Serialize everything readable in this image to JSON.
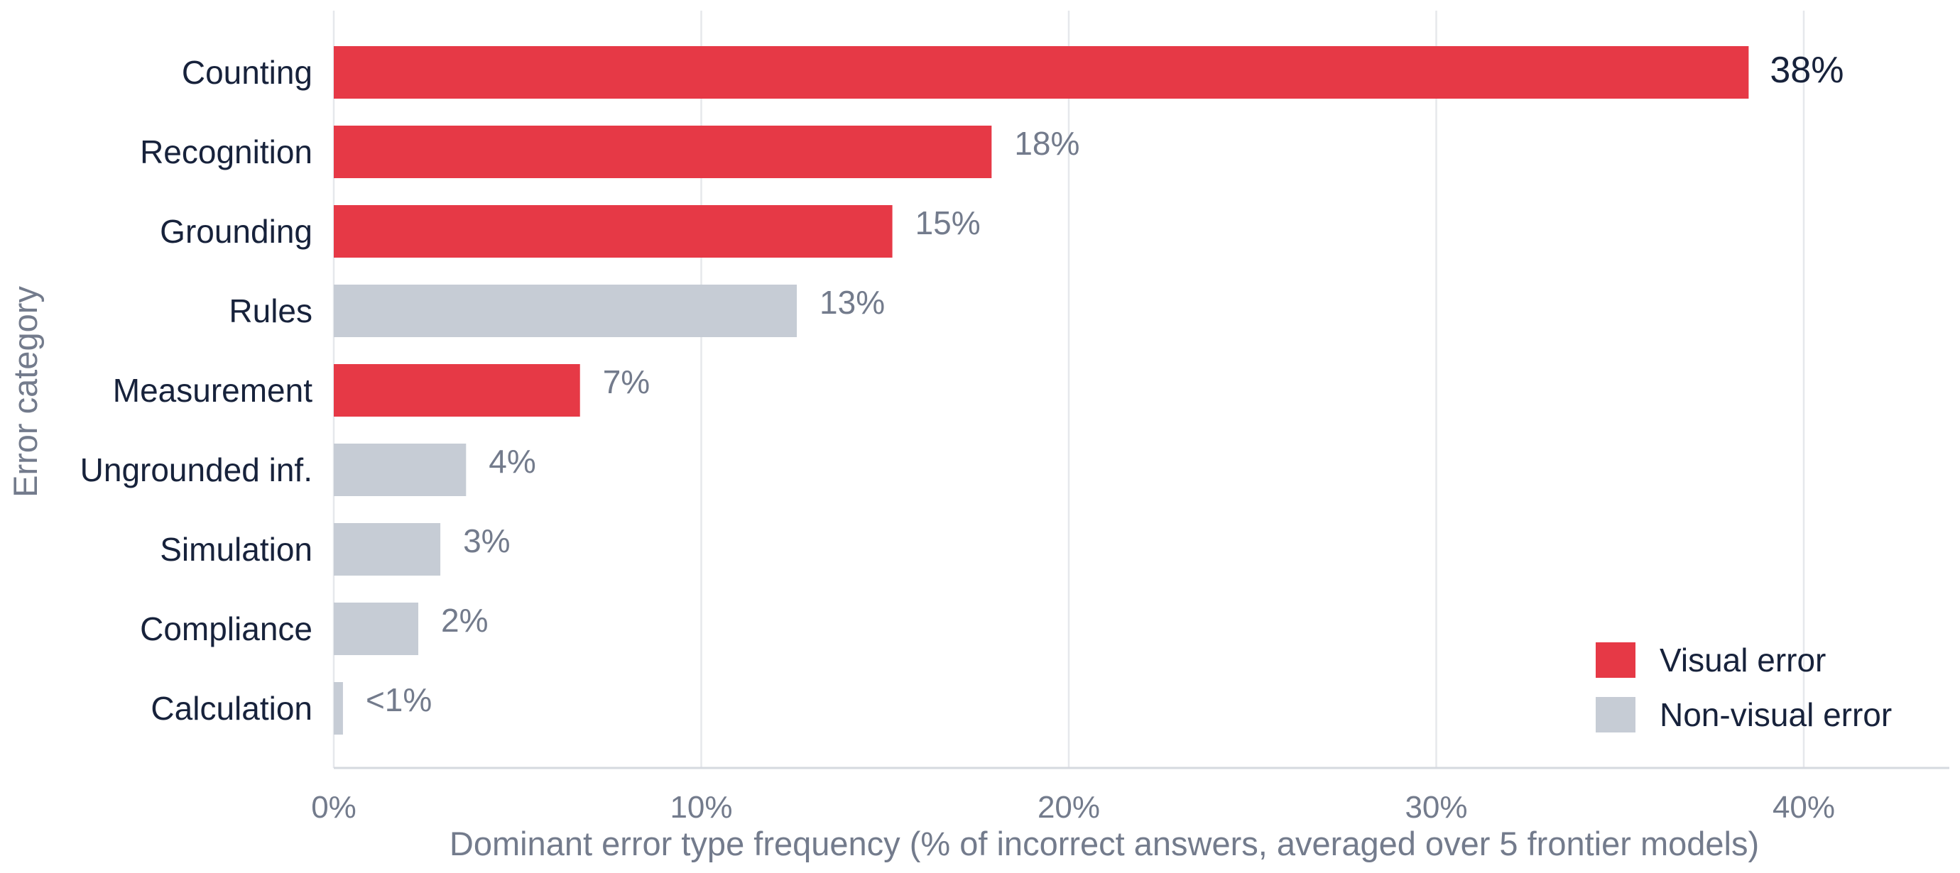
{
  "chart_data": {
    "type": "bar",
    "orientation": "horizontal",
    "categories": [
      "Counting",
      "Recognition",
      "Grounding",
      "Rules",
      "Measurement",
      "Ungrounded inf.",
      "Simulation",
      "Compliance",
      "Calculation"
    ],
    "values": [
      38.5,
      17.9,
      15.2,
      12.6,
      6.7,
      3.6,
      2.9,
      2.3,
      0.25
    ],
    "data_labels": [
      "38%",
      "18%",
      "15%",
      "13%",
      "7%",
      "4%",
      "3%",
      "2%",
      "<1%"
    ],
    "groups": [
      "Visual error",
      "Visual error",
      "Visual error",
      "Non-visual error",
      "Visual error",
      "Non-visual error",
      "Non-visual error",
      "Non-visual error",
      "Non-visual error"
    ],
    "xlabel": "Dominant error type frequency  (% of incorrect answers, averaged over 5 frontier models)",
    "ylabel": "Error category",
    "xlim": [
      0,
      44
    ],
    "xticks": [
      0,
      10,
      20,
      30,
      40
    ],
    "xtick_labels": [
      "0%",
      "10%",
      "20%",
      "30%",
      "40%"
    ],
    "grid": "vertical",
    "legend": {
      "placement": "bottom-right",
      "items": [
        {
          "label": "Visual error",
          "color": "#e63946"
        },
        {
          "label": "Non-visual error",
          "color": "#c6ccd5"
        }
      ]
    },
    "colors": {
      "Visual error": "#e63946",
      "Non-visual error": "#c6ccd5"
    }
  }
}
